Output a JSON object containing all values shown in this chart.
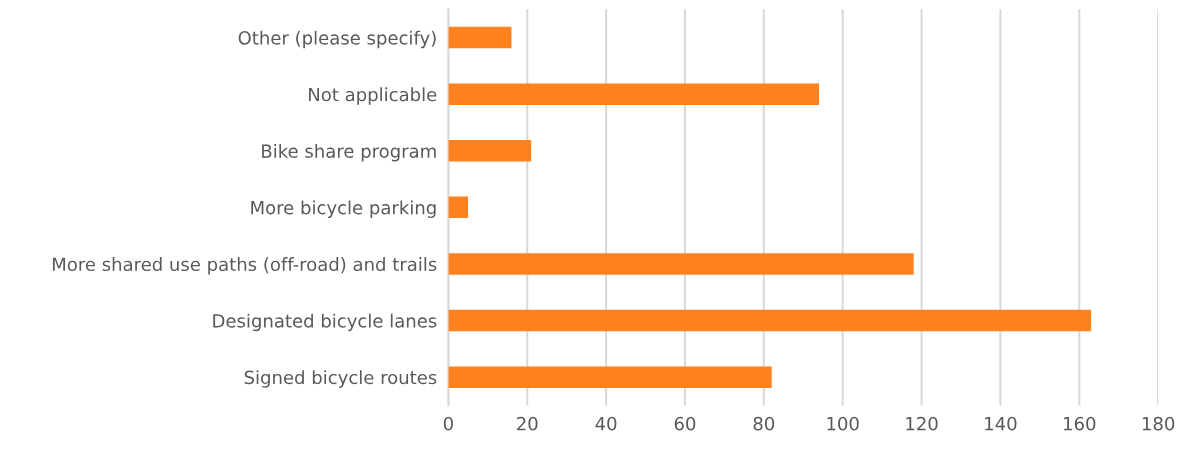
{
  "chart_data": {
    "type": "bar",
    "orientation": "horizontal",
    "categories": [
      "Other (please specify)",
      "Not applicable",
      "Bike share program",
      "More bicycle parking",
      "More shared use paths (off-road) and trails",
      "Designated bicycle lanes",
      "Signed bicycle routes"
    ],
    "values": [
      16,
      94,
      21,
      5,
      118,
      163,
      82
    ],
    "color": "#ff8221",
    "xlim": [
      0,
      180
    ],
    "xticks": [
      0,
      20,
      40,
      60,
      80,
      100,
      120,
      140,
      160,
      180
    ],
    "grid": "x"
  }
}
